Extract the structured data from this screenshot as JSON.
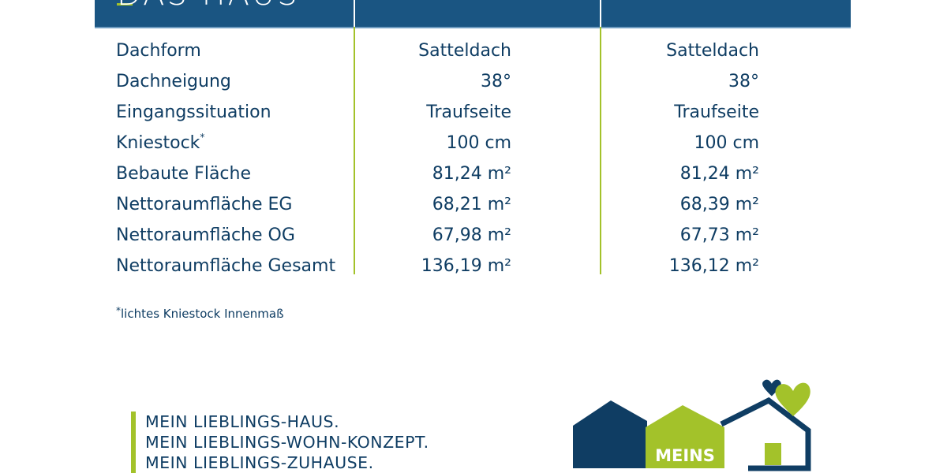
{
  "header": {
    "title": "DAS HAUS"
  },
  "rows": [
    {
      "label": "Dachform",
      "sup": "",
      "v1": "Satteldach",
      "v2": "Satteldach"
    },
    {
      "label": "Dachneigung",
      "sup": "",
      "v1": "38°",
      "v2": "38°"
    },
    {
      "label": "Eingangssituation",
      "sup": "",
      "v1": "Traufseite",
      "v2": "Traufseite"
    },
    {
      "label": "Kniestock",
      "sup": "*",
      "v1": "100 cm",
      "v2": "100 cm"
    },
    {
      "label": "Bebaute Fläche",
      "sup": "",
      "v1": "81,24 m²",
      "v2": "81,24 m²"
    },
    {
      "label": "Nettoraumfläche EG",
      "sup": "",
      "v1": "68,21 m²",
      "v2": "68,39 m²"
    },
    {
      "label": "Nettoraumfläche OG",
      "sup": "",
      "v1": "67,98 m²",
      "v2": "67,73 m²"
    },
    {
      "label": "Nettoraumfläche Gesamt",
      "sup": "",
      "v1": "136,19 m²",
      "v2": "136,12 m²"
    }
  ],
  "footnote": {
    "mark": "*",
    "text": "lichtes Kniestock Innenmaß"
  },
  "tagline": [
    "MEIN LIEBLINGS-HAUS.",
    "MEIN LIEBLINGS-WOHN-KONZEPT.",
    "MEIN LIEBLINGS-ZUHAUSE."
  ],
  "logo": {
    "text": "MEINS"
  },
  "colors": {
    "primary": "#1a5582",
    "text": "#0f3d63",
    "accent": "#a3c22a"
  }
}
